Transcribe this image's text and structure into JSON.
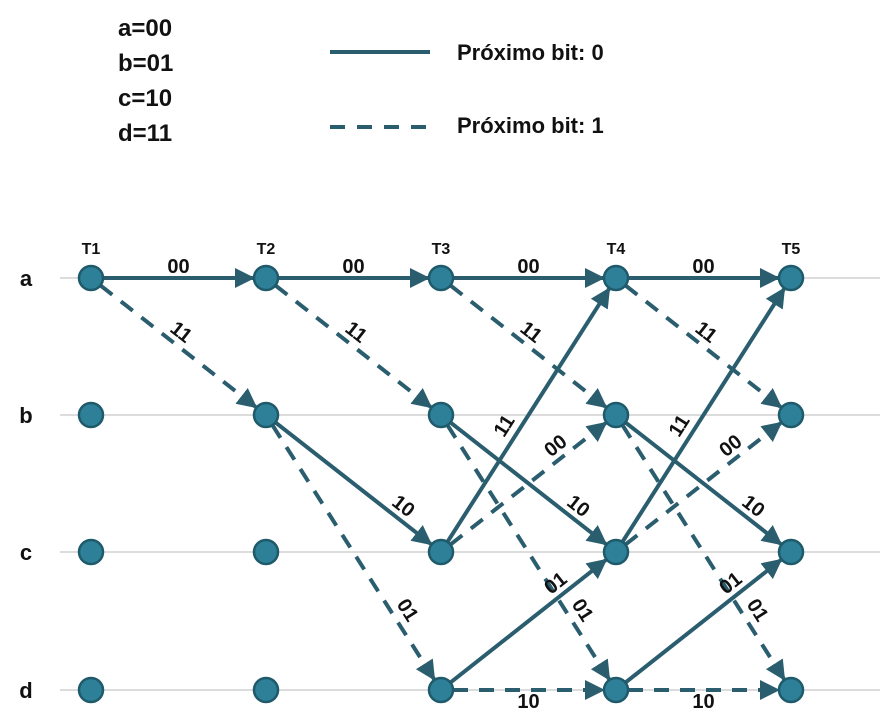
{
  "state_map": [
    "a=00",
    "b=01",
    "c=10",
    "d=11"
  ],
  "legend": [
    {
      "label": "Próximo bit: 0",
      "style": "solid"
    },
    {
      "label": "Próximo bit: 1",
      "style": "dashed"
    }
  ],
  "colors": {
    "edge": "#2a5d6e",
    "node_fill": "#2e8099",
    "node_stroke": "#1f5a6b",
    "grid": "#c8c8c8"
  },
  "states": [
    "a",
    "b",
    "c",
    "d"
  ],
  "times": [
    "T1",
    "T2",
    "T3",
    "T4",
    "T5"
  ],
  "transitions": [
    {
      "from": "a",
      "to": "a",
      "t": 1,
      "label": "00",
      "bit": 0
    },
    {
      "from": "a",
      "to": "b",
      "t": 1,
      "label": "11",
      "bit": 1
    },
    {
      "from": "a",
      "to": "a",
      "t": 2,
      "label": "00",
      "bit": 0
    },
    {
      "from": "a",
      "to": "b",
      "t": 2,
      "label": "11",
      "bit": 1
    },
    {
      "from": "b",
      "to": "c",
      "t": 2,
      "label": "10",
      "bit": 0
    },
    {
      "from": "b",
      "to": "d",
      "t": 2,
      "label": "01",
      "bit": 1
    },
    {
      "from": "a",
      "to": "a",
      "t": 3,
      "label": "00",
      "bit": 0
    },
    {
      "from": "a",
      "to": "b",
      "t": 3,
      "label": "11",
      "bit": 1
    },
    {
      "from": "b",
      "to": "c",
      "t": 3,
      "label": "10",
      "bit": 0
    },
    {
      "from": "b",
      "to": "d",
      "t": 3,
      "label": "01",
      "bit": 1
    },
    {
      "from": "c",
      "to": "a",
      "t": 3,
      "label": "11",
      "bit": 0
    },
    {
      "from": "c",
      "to": "b",
      "t": 3,
      "label": "00",
      "bit": 1
    },
    {
      "from": "d",
      "to": "c",
      "t": 3,
      "label": "01",
      "bit": 0
    },
    {
      "from": "d",
      "to": "d",
      "t": 3,
      "label": "10",
      "bit": 1
    },
    {
      "from": "a",
      "to": "a",
      "t": 4,
      "label": "00",
      "bit": 0
    },
    {
      "from": "a",
      "to": "b",
      "t": 4,
      "label": "11",
      "bit": 1
    },
    {
      "from": "b",
      "to": "c",
      "t": 4,
      "label": "10",
      "bit": 0
    },
    {
      "from": "b",
      "to": "d",
      "t": 4,
      "label": "01",
      "bit": 1
    },
    {
      "from": "c",
      "to": "a",
      "t": 4,
      "label": "11",
      "bit": 0
    },
    {
      "from": "c",
      "to": "b",
      "t": 4,
      "label": "00",
      "bit": 1
    },
    {
      "from": "d",
      "to": "c",
      "t": 4,
      "label": "01",
      "bit": 0
    },
    {
      "from": "d",
      "to": "d",
      "t": 4,
      "label": "10",
      "bit": 1
    }
  ]
}
